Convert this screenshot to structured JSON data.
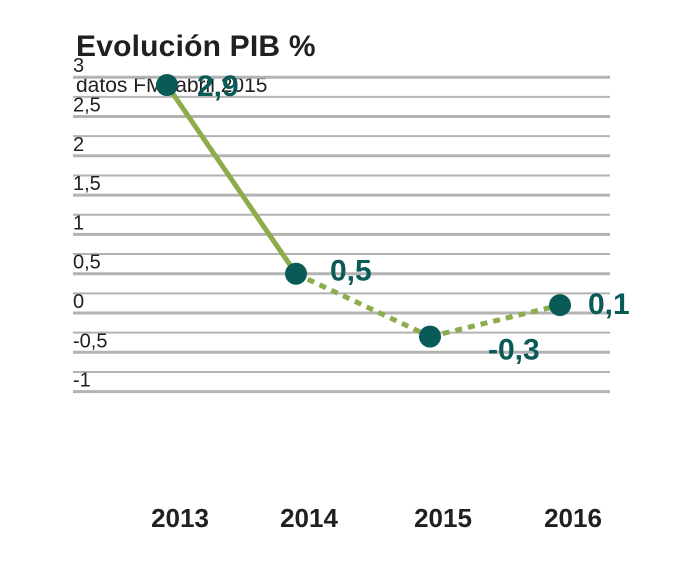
{
  "chart_data": {
    "type": "line",
    "title": "Evolución PIB %",
    "subtitle": "datos FMI abril 2015",
    "categories": [
      "2013",
      "2014",
      "2015",
      "2016"
    ],
    "series": [
      {
        "values": [
          2.9,
          0.5,
          -0.3,
          0.1
        ]
      }
    ],
    "data_labels": [
      "2,9",
      "0,5",
      "-0,3",
      "0,1"
    ],
    "y_tick_values": [
      3,
      2.5,
      2,
      1.5,
      1,
      0.5,
      0,
      -0.5,
      -1
    ],
    "y_tick_labels": [
      "3",
      "2,5",
      "2",
      "1,5",
      "1",
      "0,5",
      "0",
      "-0,5",
      "-1"
    ],
    "ylim": [
      -1.2,
      3
    ],
    "grid": true,
    "line_styles": [
      "solid",
      "dotted",
      "dotted"
    ],
    "colors": {
      "line": "#8bad4b",
      "marker": "#0a5a57",
      "label": "#0a5a57",
      "grid": "#b3b3b3",
      "text": "#231f20"
    }
  }
}
